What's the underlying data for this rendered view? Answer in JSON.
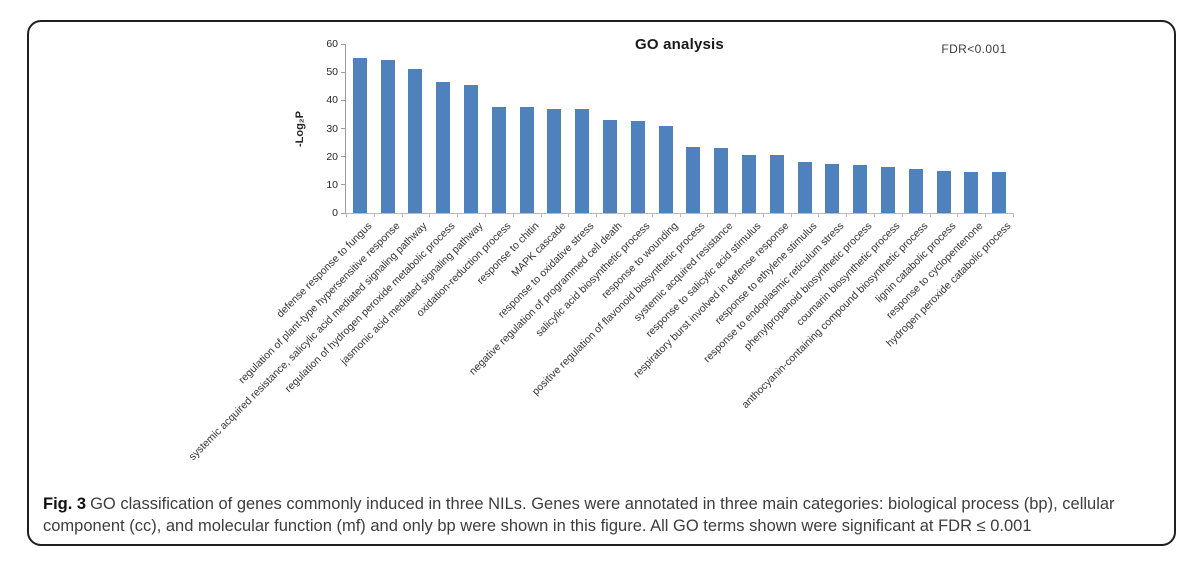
{
  "figure": {
    "caption_label": "Fig. 3",
    "caption_text": "GO classification of genes commonly induced in three NILs. Genes were annotated in three main categories: biological process (bp), cellular component (cc), and molecular function (mf) and only bp were shown in this figure. All GO terms shown were significant at FDR ≤ 0.001"
  },
  "chart_data": {
    "type": "bar",
    "title": "GO analysis",
    "annotation": "FDR<0.001",
    "ylabel": "-Log₂P",
    "xlabel": "",
    "ylim": [
      0,
      60
    ],
    "yticks": [
      0,
      10,
      20,
      30,
      40,
      50,
      60
    ],
    "grid": false,
    "legend": "none",
    "bar_color": "#4f81bd",
    "categories": [
      "defense response to fungus",
      "regulation of plant-type hypersensitive response",
      "systemic acquired resistance, salicylic acid mediated signaling pathway",
      "regulation of hydrogen peroxide metabolic process",
      "jasmonic acid mediated signaling pathway",
      "oxidation-reduction process",
      "response to chitin",
      "MAPK cascade",
      "response to oxidative stress",
      "negative regulation of programmed cell death",
      "salicylic acid biosynthetic process",
      "response to wounding",
      "positive regulation of flavonoid biosynthetic process",
      "systemic acquired resistance",
      "response to salicylic acid stimulus",
      "respiratory burst involved in defense response",
      "response to ethylene stimulus",
      "response to endoplasmic reticulum stress",
      "phenylpropanoid biosynthetic process",
      "coumarin biosynthetic process",
      "anthocyanin-containing compound biosynthetic process",
      "lignin catabolic process",
      "response to cyclopentenone",
      "hydrogen peroxide catabolic process"
    ],
    "values": [
      55,
      54.5,
      51,
      46.5,
      45.5,
      37.5,
      37.5,
      37,
      37,
      33,
      32.5,
      31,
      23.5,
      23,
      20.5,
      20.5,
      18,
      17.5,
      17,
      16.5,
      15.5,
      15,
      14.5,
      14.5
    ]
  }
}
